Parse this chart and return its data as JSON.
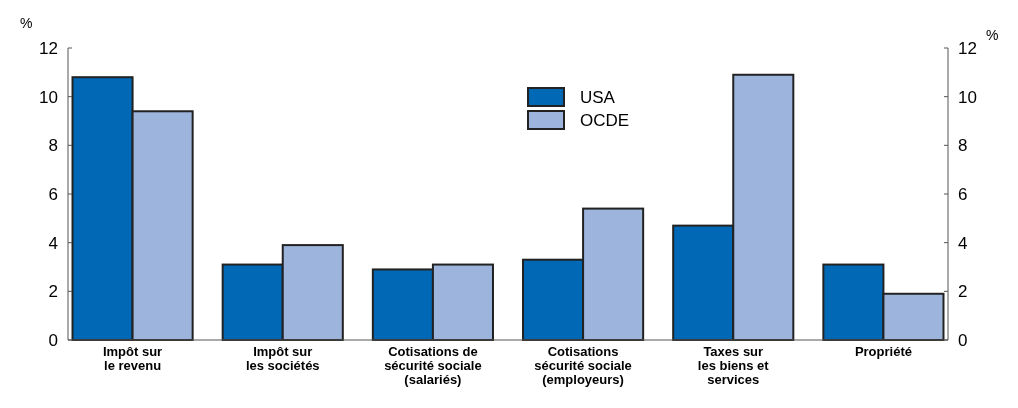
{
  "chart_data": {
    "type": "bar",
    "ylabel": "%",
    "y2label": "%",
    "categories": [
      "Impôt sur\nle revenu",
      "Impôt sur\nles sociétés",
      "Cotisations de\nsécurité sociale\n(salariés)",
      "Cotisations\nsécurité sociale\n(employeurs)",
      "Taxes sur\nles biens et\nservices",
      "Propriété"
    ],
    "series": [
      {
        "name": "USA",
        "color": "#0068b4",
        "values": [
          10.8,
          3.1,
          2.9,
          3.3,
          4.7,
          3.1
        ]
      },
      {
        "name": "OCDE",
        "color": "#9db4dc",
        "values": [
          9.4,
          3.9,
          3.1,
          5.4,
          10.9,
          1.9
        ]
      }
    ],
    "ylim": [
      0,
      12
    ],
    "yticks": [
      0,
      2,
      4,
      6,
      8,
      10,
      12
    ],
    "y2lim": [
      0,
      12
    ],
    "y2ticks": [
      0,
      2,
      4,
      6,
      8,
      10,
      12
    ],
    "legend": "top center",
    "grid": false
  }
}
